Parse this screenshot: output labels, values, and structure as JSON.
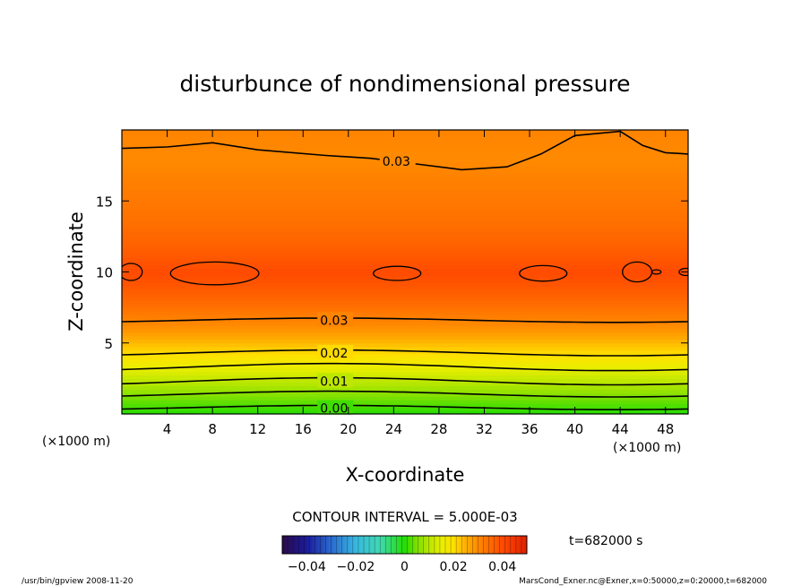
{
  "chart_data": {
    "type": "contour",
    "title": "disturbunce of nondimensional pressure",
    "xlabel": "X-coordinate",
    "ylabel": "Z-coordinate",
    "x_unit_left": "(×1000 m)",
    "x_unit_right": "(×1000 m)",
    "xlim": [
      0,
      50
    ],
    "ylim": [
      0,
      20
    ],
    "x_ticks": [
      4,
      8,
      12,
      16,
      20,
      24,
      28,
      32,
      36,
      40,
      44,
      48
    ],
    "y_ticks": [
      5,
      10,
      15
    ],
    "contour_labels": [
      {
        "text": "0.03",
        "x": 23.0,
        "z": 17.8
      },
      {
        "text": "0.03",
        "x": 17.5,
        "z": 6.6
      },
      {
        "text": "0.02",
        "x": 17.5,
        "z": 4.3
      },
      {
        "text": "0.01",
        "x": 17.5,
        "z": 2.3
      },
      {
        "text": "0.00",
        "x": 17.5,
        "z": 0.4
      }
    ],
    "contour_interval_text": "CONTOUR INTERVAL = 5.000E-03",
    "contour_interval": 0.005,
    "time_label": "t=682000 s",
    "colorbar": {
      "min": -0.05,
      "max": 0.05,
      "tick_labels": [
        "−0.04",
        "−0.02",
        "0",
        "0.02",
        "0.04"
      ],
      "tick_values": [
        -0.04,
        -0.02,
        0,
        0.02,
        0.04
      ]
    },
    "field_profile": [
      {
        "z": 0.0,
        "value": 0.0
      },
      {
        "z": 1.0,
        "value": 0.004
      },
      {
        "z": 2.0,
        "value": 0.009
      },
      {
        "z": 3.0,
        "value": 0.014
      },
      {
        "z": 4.0,
        "value": 0.019
      },
      {
        "z": 5.0,
        "value": 0.024
      },
      {
        "z": 6.0,
        "value": 0.029
      },
      {
        "z": 7.5,
        "value": 0.034
      },
      {
        "z": 9.0,
        "value": 0.038
      },
      {
        "z": 10.0,
        "value": 0.04
      },
      {
        "z": 11.5,
        "value": 0.037
      },
      {
        "z": 13.5,
        "value": 0.034
      },
      {
        "z": 16.0,
        "value": 0.032
      },
      {
        "z": 18.0,
        "value": 0.03
      },
      {
        "z": 20.0,
        "value": 0.031
      }
    ],
    "colors": {
      "-0.05": "#2a0a4a",
      "-0.04": "#1b1b9a",
      "-0.03": "#2a6ad0",
      "-0.02": "#38b8e0",
      "-0.01": "#40d8b0",
      "0.00": "#22dd00",
      "0.005": "#7ee000",
      "0.01": "#b8e600",
      "0.015": "#e8ee00",
      "0.02": "#ffe000",
      "0.025": "#ffb000",
      "0.03": "#ff8a00",
      "0.035": "#ff6a00",
      "0.04": "#ff4a00",
      "0.05": "#e02000"
    }
  },
  "footer": {
    "left": "/usr/bin/gpview   2008-11-20",
    "right": "MarsCond_Exner.nc@Exner,x=0:50000,z=0:20000,t=682000"
  }
}
